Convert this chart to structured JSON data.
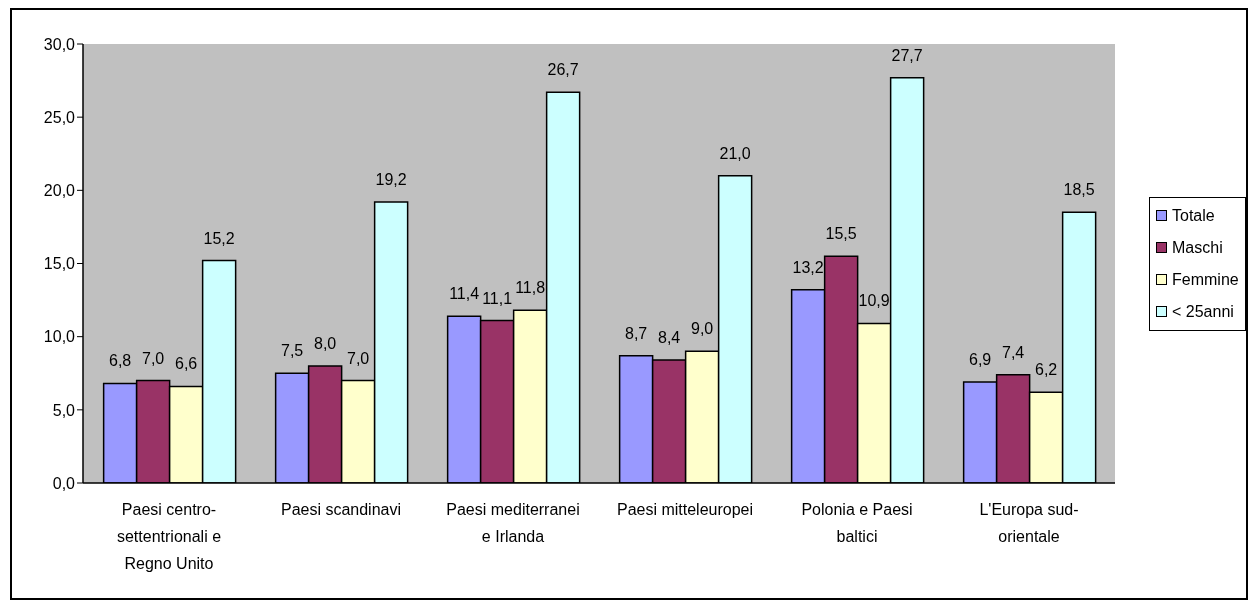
{
  "chart_data": {
    "type": "bar",
    "categories": [
      "Paesi centro-settentrionali e Regno Unito",
      "Paesi scandinavi",
      "Paesi mediterranei e Irlanda",
      "Paesi mitteleuropei",
      "Polonia e Paesi baltici",
      "L'Europa sud-orientale"
    ],
    "series": [
      {
        "name": "Totale",
        "color": "#9999ff",
        "values": [
          6.8,
          7.5,
          11.4,
          8.7,
          13.2,
          6.9
        ],
        "value_labels": [
          "6,8",
          "7,5",
          "11,4",
          "8,7",
          "13,2",
          "6,9"
        ]
      },
      {
        "name": "Maschi",
        "color": "#993366",
        "values": [
          7.0,
          8.0,
          11.1,
          8.4,
          15.5,
          7.4
        ],
        "value_labels": [
          "7,0",
          "8,0",
          "11,1",
          "8,4",
          "15,5",
          "7,4"
        ]
      },
      {
        "name": "Femmine",
        "color": "#ffffcc",
        "values": [
          6.6,
          7.0,
          11.8,
          9.0,
          10.9,
          6.2
        ],
        "value_labels": [
          "6,6",
          "7,0",
          "11,8",
          "9,0",
          "10,9",
          "6,2"
        ]
      },
      {
        "name": "< 25anni",
        "color": "#ccffff",
        "values": [
          15.2,
          19.2,
          26.7,
          21.0,
          27.7,
          18.5
        ],
        "value_labels": [
          "15,2",
          "19,2",
          "26,7",
          "21,0",
          "27,7",
          "18,5"
        ]
      }
    ],
    "ylim": [
      0,
      30
    ],
    "yticks": [
      {
        "value": 0,
        "label": "0,0"
      },
      {
        "value": 5,
        "label": "5,0"
      },
      {
        "value": 10,
        "label": "10,0"
      },
      {
        "value": 15,
        "label": "15,0"
      },
      {
        "value": 20,
        "label": "20,0"
      },
      {
        "value": 25,
        "label": "25,0"
      },
      {
        "value": 30,
        "label": "30,0"
      }
    ],
    "legend": "right"
  }
}
